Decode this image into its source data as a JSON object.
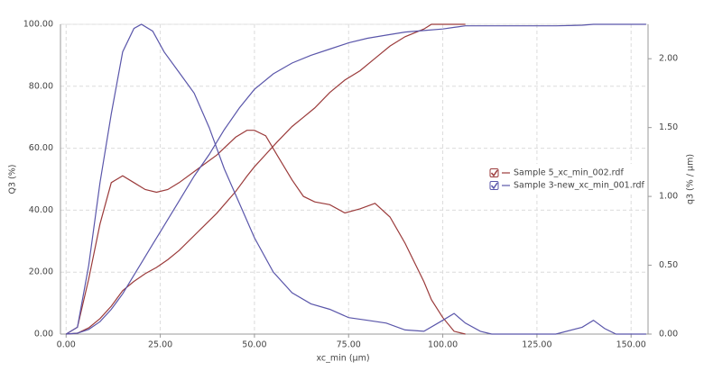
{
  "chart_data": {
    "type": "line",
    "x_label": "xc_min (µm)",
    "y_label": "Q3 (%)",
    "y2_label": "q3 (% / µm)",
    "xlim": [
      -1.5,
      154.5
    ],
    "ylim": [
      0,
      100
    ],
    "y2lim": [
      0,
      2.25
    ],
    "grid": true,
    "legend": "right",
    "xticks": [
      {
        "value": 0,
        "label": "0.00"
      },
      {
        "value": 25,
        "label": "25.00"
      },
      {
        "value": 50,
        "label": "50.00"
      },
      {
        "value": 75,
        "label": "75.00"
      },
      {
        "value": 100,
        "label": "100.00"
      },
      {
        "value": 125,
        "label": "125.00"
      },
      {
        "value": 150,
        "label": "150.00"
      }
    ],
    "yticks": [
      {
        "value": 0,
        "label": "0.00"
      },
      {
        "value": 20,
        "label": "20.00"
      },
      {
        "value": 40,
        "label": "40.00"
      },
      {
        "value": 60,
        "label": "60.00"
      },
      {
        "value": 80,
        "label": "80.00"
      },
      {
        "value": 100,
        "label": "100.00"
      }
    ],
    "y2ticks": [
      {
        "value": 0,
        "label": "0.00"
      },
      {
        "value": 0.5,
        "label": "0.50"
      },
      {
        "value": 1,
        "label": "1.00"
      },
      {
        "value": 1.5,
        "label": "1.50"
      },
      {
        "value": 2,
        "label": "2.00"
      }
    ],
    "series": [
      {
        "name": "Sample 5_xc_min_002.rdf",
        "color": "#9b3b3b",
        "x": [
          0,
          3,
          6,
          9,
          12,
          15,
          18,
          21,
          24,
          27,
          30,
          35,
          40,
          45,
          48,
          50,
          53,
          56,
          60,
          63,
          66,
          70,
          74,
          78,
          82,
          86,
          90,
          95,
          97,
          100,
          103,
          106
        ],
        "values": [
          0,
          0.3,
          2,
          5,
          9,
          14,
          17,
          19.5,
          21.5,
          24,
          27,
          33,
          39,
          46,
          51,
          54,
          58,
          62,
          67,
          70,
          73,
          78,
          82,
          85,
          89,
          93,
          96,
          98.5,
          100,
          100,
          100,
          100
        ],
        "y2_values": [
          0,
          0.05,
          0.4,
          0.8,
          1.1,
          1.15,
          1.1,
          1.05,
          1.03,
          1.05,
          1.1,
          1.2,
          1.3,
          1.43,
          1.48,
          1.48,
          1.44,
          1.3,
          1.12,
          1.0,
          0.96,
          0.94,
          0.88,
          0.91,
          0.95,
          0.85,
          0.66,
          0.38,
          0.25,
          0.12,
          0.02,
          0
        ]
      },
      {
        "name": "Sample 3-new_xc_min_001.rdf",
        "color": "#5a56aa",
        "x": [
          0,
          3,
          6,
          9,
          12,
          15,
          18,
          20,
          23,
          26,
          30,
          34,
          38,
          42,
          46,
          50,
          55,
          60,
          65,
          70,
          75,
          80,
          85,
          90,
          95,
          100,
          103,
          106,
          110,
          113,
          130,
          137,
          140,
          143,
          146,
          154
        ],
        "values": [
          0,
          0.3,
          1.5,
          4,
          8,
          13,
          19,
          23,
          29,
          35,
          43,
          51,
          58,
          66,
          73,
          79,
          84,
          87.5,
          90,
          92,
          94,
          95.5,
          96.5,
          97.5,
          98,
          98.5,
          99,
          99.5,
          99.5,
          99.5,
          99.5,
          99.7,
          100,
          100,
          100,
          100
        ],
        "y2_values": [
          0,
          0.05,
          0.5,
          1.1,
          1.6,
          2.05,
          2.22,
          2.25,
          2.2,
          2.05,
          1.9,
          1.75,
          1.5,
          1.2,
          0.95,
          0.7,
          0.45,
          0.3,
          0.22,
          0.18,
          0.12,
          0.1,
          0.08,
          0.03,
          0.02,
          0.1,
          0.15,
          0.08,
          0.02,
          0,
          0,
          0.05,
          0.1,
          0.04,
          0,
          0
        ]
      }
    ]
  }
}
